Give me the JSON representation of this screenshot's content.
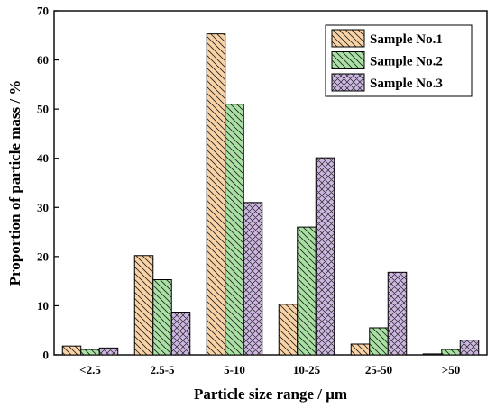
{
  "chart_data": {
    "type": "bar",
    "xlabel": "Particle size range / μm",
    "ylabel": "Proportion of particle mass / %",
    "ylim": [
      0,
      70
    ],
    "yticks": [
      0,
      10,
      20,
      30,
      40,
      50,
      60,
      70
    ],
    "categories": [
      "<2.5",
      "2.5-5",
      "5-10",
      "10-25",
      "25-50",
      ">50"
    ],
    "legend_position": "top-right",
    "grid": false,
    "series": [
      {
        "name": "Sample No.1",
        "values": [
          1.8,
          20.2,
          65.3,
          10.3,
          2.2,
          0.2
        ],
        "color": "#F9D3A6",
        "pattern": "backslash-hatch"
      },
      {
        "name": "Sample No.2",
        "values": [
          1.1,
          15.3,
          51.0,
          26.0,
          5.5,
          1.1
        ],
        "color": "#A9E0A3",
        "pattern": "backslash-hatch"
      },
      {
        "name": "Sample No.3",
        "values": [
          1.4,
          8.7,
          31.0,
          40.1,
          16.8,
          3.0
        ],
        "color": "#CDB7E2",
        "pattern": "cross-hatch"
      }
    ]
  }
}
